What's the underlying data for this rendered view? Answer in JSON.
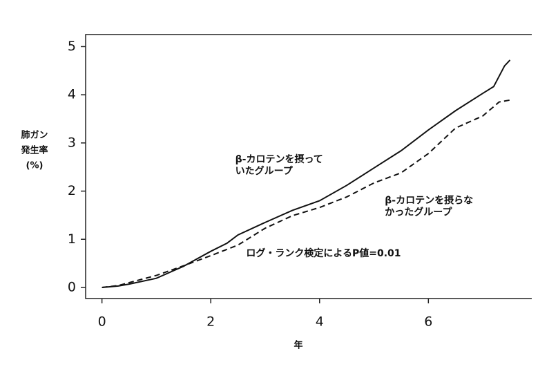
{
  "chart_data": {
    "type": "line",
    "ylabel": [
      "肺ガン",
      "発生率",
      "(%)"
    ],
    "xlabel": "年",
    "xlim": [
      -0.3,
      7.9
    ],
    "ylim": [
      -0.23,
      5.25
    ],
    "xticks": [
      0,
      2,
      4,
      6
    ],
    "yticks": [
      0,
      1,
      2,
      3,
      4,
      5
    ],
    "grid": false,
    "series": [
      {
        "color": "#111111",
        "dash": false,
        "x": [
          0,
          0.3,
          0.5,
          1,
          1.5,
          2,
          2.3,
          2.5,
          3,
          3.5,
          4,
          4.5,
          5,
          5.5,
          6,
          6.5,
          7,
          7.2,
          7.4,
          7.5
        ],
        "values": [
          0,
          0.03,
          0.07,
          0.19,
          0.44,
          0.75,
          0.92,
          1.09,
          1.35,
          1.6,
          1.8,
          2.12,
          2.48,
          2.84,
          3.27,
          3.67,
          4.03,
          4.17,
          4.6,
          4.72
        ]
      },
      {
        "color": "#111111",
        "dash": true,
        "x": [
          0,
          0.3,
          0.5,
          1,
          1.5,
          2,
          2.5,
          3,
          3.5,
          4,
          4.5,
          5,
          5.5,
          6,
          6.5,
          7,
          7.3,
          7.5
        ],
        "values": [
          0,
          0.04,
          0.1,
          0.25,
          0.45,
          0.66,
          0.88,
          1.23,
          1.49,
          1.66,
          1.88,
          2.17,
          2.38,
          2.78,
          3.31,
          3.56,
          3.85,
          3.89
        ]
      }
    ],
    "annotations": [
      {
        "lines": [
          "β-カロテンを摂って",
          "いたグループ"
        ],
        "x": 2.45,
        "y": 2.65
      },
      {
        "lines": [
          "β-カロテンを摂らな",
          "かったグループ"
        ],
        "x": 5.2,
        "y": 1.8
      },
      {
        "lines": [
          "ログ・ランク検定によるP値=0.01"
        ],
        "x": 2.65,
        "y": 0.7
      }
    ]
  }
}
